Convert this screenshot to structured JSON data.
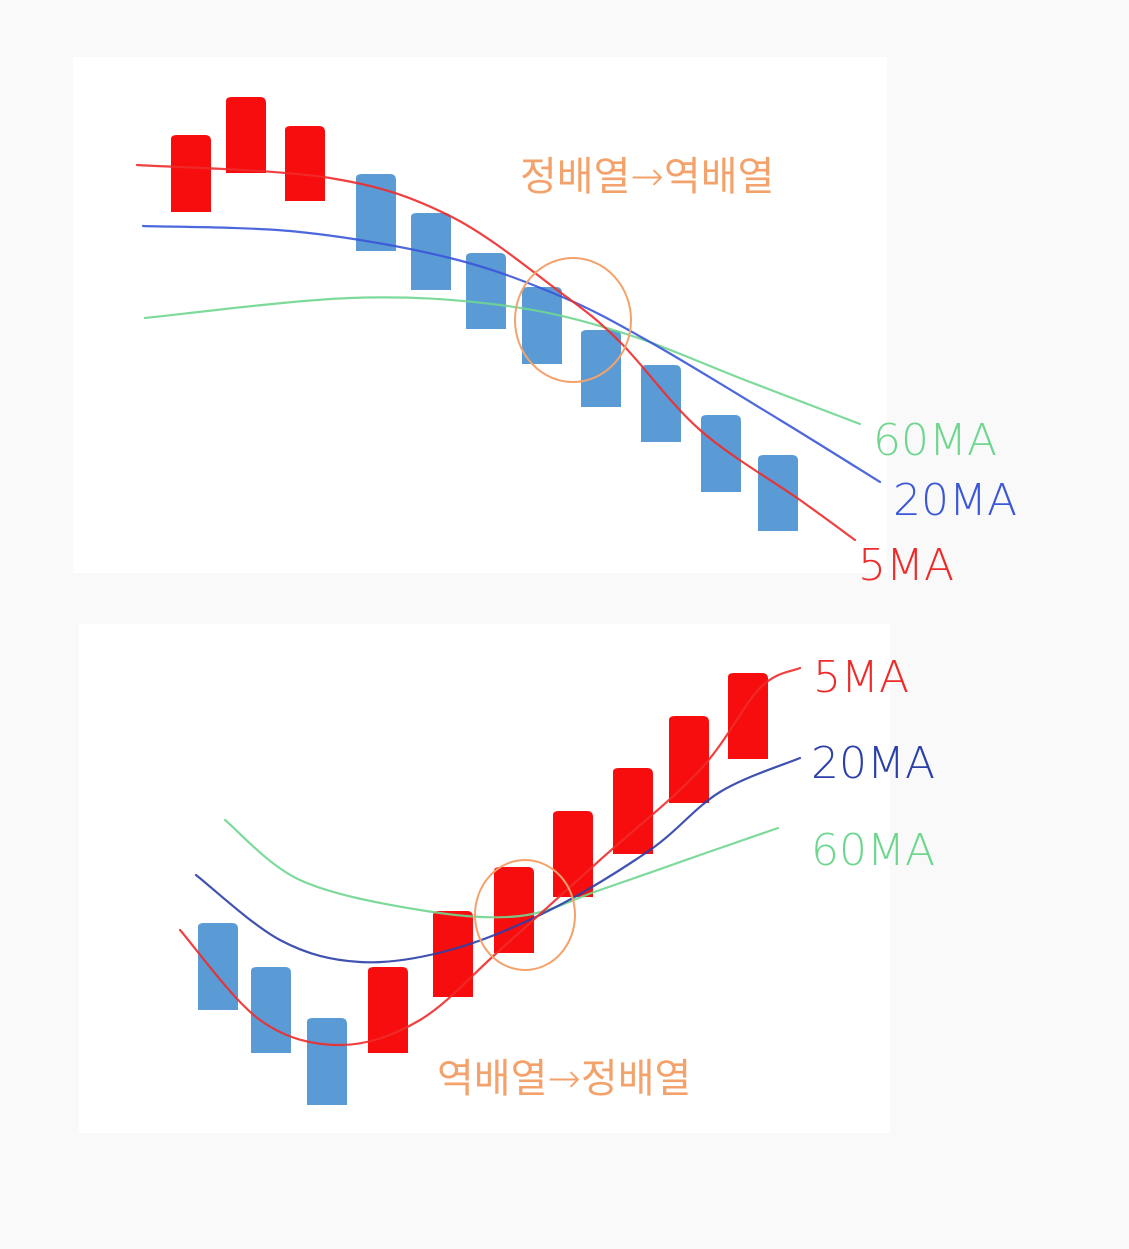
{
  "colors": {
    "up": "#f70d0d",
    "down": "#5b9bd5",
    "ma5": "#ee2b2b",
    "ma20": "#3a57d8",
    "ma60": "#6fd68f",
    "annotation": "#f4a26b",
    "background": "#f9f9f9",
    "panel": "#ffffff"
  },
  "chart_data": [
    {
      "type": "diagram",
      "title": "정배열→역배열",
      "candles": [
        "up",
        "up",
        "up",
        "down",
        "down",
        "down",
        "down",
        "down",
        "down",
        "down",
        "down"
      ],
      "series": [
        {
          "name": "60MA",
          "color": "#6fd68f"
        },
        {
          "name": "20MA",
          "color": "#3a57d8"
        },
        {
          "name": "5MA",
          "color": "#ee2b2b"
        }
      ],
      "highlight": "crossover-circle"
    },
    {
      "type": "diagram",
      "title": "역배열→정배열",
      "candles": [
        "down",
        "down",
        "down",
        "up",
        "up",
        "up",
        "up",
        "up",
        "up",
        "up"
      ],
      "series": [
        {
          "name": "5MA",
          "color": "#ee2b2b"
        },
        {
          "name": "20MA",
          "color": "#2a3fa8"
        },
        {
          "name": "60MA",
          "color": "#6fd68f"
        }
      ],
      "highlight": "crossover-circle"
    }
  ]
}
